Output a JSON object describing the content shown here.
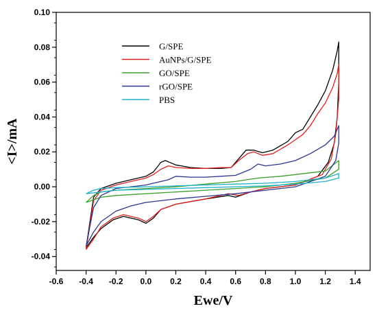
{
  "chart_data": {
    "type": "line",
    "title": "",
    "xlabel": "Ewe/V",
    "ylabel": "<I>/mA",
    "xlim": [
      -0.6,
      1.5
    ],
    "ylim": [
      -0.048,
      0.1
    ],
    "xticks": [
      -0.6,
      -0.4,
      -0.2,
      0.0,
      0.2,
      0.4,
      0.6,
      0.8,
      1.0,
      1.2,
      1.4
    ],
    "xtick_labels": [
      "-0.6",
      "-0.4",
      "-0.2",
      "0.0",
      "0.2",
      "0.4",
      "0.6",
      "0.8",
      "1.0",
      "1.2",
      "1.4"
    ],
    "yticks": [
      -0.04,
      -0.02,
      0.0,
      0.02,
      0.04,
      0.06,
      0.08,
      0.1
    ],
    "ytick_labels": [
      "-0.04",
      "-0.02",
      "0.00",
      "0.02",
      "0.04",
      "0.06",
      "0.08",
      "0.10"
    ],
    "grid": false,
    "legend_position": "upper-left",
    "series": [
      {
        "name": "G/SPE",
        "color": "#000000",
        "points": [
          [
            -0.4,
            -0.035
          ],
          [
            -0.35,
            -0.006
          ],
          [
            -0.3,
            -0.001
          ],
          [
            -0.2,
            0.002
          ],
          [
            -0.1,
            0.004
          ],
          [
            0.0,
            0.006
          ],
          [
            0.05,
            0.0085
          ],
          [
            0.1,
            0.014
          ],
          [
            0.13,
            0.015
          ],
          [
            0.2,
            0.0125
          ],
          [
            0.3,
            0.011
          ],
          [
            0.4,
            0.0105
          ],
          [
            0.5,
            0.0105
          ],
          [
            0.57,
            0.011
          ],
          [
            0.62,
            0.016
          ],
          [
            0.67,
            0.021
          ],
          [
            0.72,
            0.021
          ],
          [
            0.78,
            0.0195
          ],
          [
            0.85,
            0.021
          ],
          [
            0.95,
            0.026
          ],
          [
            1.0,
            0.031
          ],
          [
            1.05,
            0.033
          ],
          [
            1.1,
            0.04
          ],
          [
            1.15,
            0.047
          ],
          [
            1.2,
            0.055
          ],
          [
            1.25,
            0.067
          ],
          [
            1.28,
            0.078
          ],
          [
            1.29,
            0.083
          ],
          [
            1.29,
            0.06
          ],
          [
            1.28,
            0.04
          ],
          [
            1.26,
            0.025
          ],
          [
            1.22,
            0.014
          ],
          [
            1.15,
            0.006
          ],
          [
            1.0,
            0.001
          ],
          [
            0.8,
            -0.001
          ],
          [
            0.7,
            -0.003
          ],
          [
            0.6,
            -0.006
          ],
          [
            0.55,
            -0.005
          ],
          [
            0.4,
            -0.007
          ],
          [
            0.2,
            -0.01
          ],
          [
            0.1,
            -0.013
          ],
          [
            0.05,
            -0.018
          ],
          [
            0.0,
            -0.021
          ],
          [
            -0.05,
            -0.019
          ],
          [
            -0.15,
            -0.017
          ],
          [
            -0.22,
            -0.019
          ],
          [
            -0.3,
            -0.024
          ],
          [
            -0.35,
            -0.029
          ],
          [
            -0.4,
            -0.035
          ]
        ]
      },
      {
        "name": "AuNPs/G/SPE",
        "color": "#e0201c",
        "points": [
          [
            -0.4,
            -0.036
          ],
          [
            -0.35,
            -0.008
          ],
          [
            -0.3,
            -0.002
          ],
          [
            -0.2,
            0.001
          ],
          [
            -0.1,
            0.003
          ],
          [
            0.0,
            0.005
          ],
          [
            0.05,
            0.007
          ],
          [
            0.1,
            0.01
          ],
          [
            0.15,
            0.012
          ],
          [
            0.2,
            0.011
          ],
          [
            0.3,
            0.0105
          ],
          [
            0.4,
            0.0105
          ],
          [
            0.5,
            0.011
          ],
          [
            0.57,
            0.011
          ],
          [
            0.62,
            0.015
          ],
          [
            0.68,
            0.019
          ],
          [
            0.72,
            0.02
          ],
          [
            0.78,
            0.018
          ],
          [
            0.85,
            0.019
          ],
          [
            0.95,
            0.024
          ],
          [
            1.0,
            0.027
          ],
          [
            1.05,
            0.03
          ],
          [
            1.1,
            0.035
          ],
          [
            1.15,
            0.042
          ],
          [
            1.2,
            0.048
          ],
          [
            1.25,
            0.057
          ],
          [
            1.28,
            0.065
          ],
          [
            1.29,
            0.07
          ],
          [
            1.29,
            0.05
          ],
          [
            1.27,
            0.03
          ],
          [
            1.24,
            0.016
          ],
          [
            1.18,
            0.007
          ],
          [
            1.0,
            0.001
          ],
          [
            0.8,
            -0.001
          ],
          [
            0.7,
            -0.003
          ],
          [
            0.62,
            -0.005
          ],
          [
            0.55,
            -0.004
          ],
          [
            0.4,
            -0.007
          ],
          [
            0.2,
            -0.01
          ],
          [
            0.1,
            -0.013
          ],
          [
            0.05,
            -0.017
          ],
          [
            0.0,
            -0.02
          ],
          [
            -0.05,
            -0.018
          ],
          [
            -0.15,
            -0.016
          ],
          [
            -0.22,
            -0.018
          ],
          [
            -0.3,
            -0.023
          ],
          [
            -0.35,
            -0.03
          ],
          [
            -0.4,
            -0.036
          ]
        ]
      },
      {
        "name": "GO/SPE",
        "color": "#3aa02a",
        "points": [
          [
            -0.4,
            -0.009
          ],
          [
            -0.35,
            -0.005
          ],
          [
            -0.3,
            -0.003
          ],
          [
            -0.2,
            -0.002
          ],
          [
            0.0,
            -0.001
          ],
          [
            0.2,
            0.0
          ],
          [
            0.4,
            0.0015
          ],
          [
            0.6,
            0.003
          ],
          [
            0.75,
            0.005
          ],
          [
            0.9,
            0.006
          ],
          [
            1.0,
            0.007
          ],
          [
            1.1,
            0.008
          ],
          [
            1.2,
            0.009
          ],
          [
            1.29,
            0.015
          ],
          [
            1.29,
            0.01
          ],
          [
            1.2,
            0.005
          ],
          [
            1.0,
            0.002
          ],
          [
            0.8,
            0.0
          ],
          [
            0.6,
            -0.001
          ],
          [
            0.4,
            -0.002
          ],
          [
            0.2,
            -0.003
          ],
          [
            0.0,
            -0.004
          ],
          [
            -0.2,
            -0.005
          ],
          [
            -0.3,
            -0.006
          ],
          [
            -0.4,
            -0.009
          ]
        ]
      },
      {
        "name": "rGO/SPE",
        "color": "#2c3591",
        "points": [
          [
            -0.4,
            -0.034
          ],
          [
            -0.35,
            -0.012
          ],
          [
            -0.3,
            -0.005
          ],
          [
            -0.2,
            -0.001
          ],
          [
            -0.1,
            0.0
          ],
          [
            0.0,
            0.001
          ],
          [
            0.1,
            0.003
          ],
          [
            0.15,
            0.004
          ],
          [
            0.2,
            0.006
          ],
          [
            0.3,
            0.0055
          ],
          [
            0.4,
            0.0055
          ],
          [
            0.5,
            0.006
          ],
          [
            0.6,
            0.0065
          ],
          [
            0.7,
            0.01
          ],
          [
            0.75,
            0.013
          ],
          [
            0.8,
            0.012
          ],
          [
            0.9,
            0.013
          ],
          [
            1.0,
            0.015
          ],
          [
            1.1,
            0.019
          ],
          [
            1.2,
            0.024
          ],
          [
            1.26,
            0.029
          ],
          [
            1.29,
            0.035
          ],
          [
            1.29,
            0.025
          ],
          [
            1.27,
            0.015
          ],
          [
            1.2,
            0.006
          ],
          [
            1.0,
            0.0
          ],
          [
            0.8,
            -0.002
          ],
          [
            0.6,
            -0.004
          ],
          [
            0.4,
            -0.0055
          ],
          [
            0.2,
            -0.007
          ],
          [
            0.1,
            -0.008
          ],
          [
            0.0,
            -0.009
          ],
          [
            -0.1,
            -0.011
          ],
          [
            -0.2,
            -0.014
          ],
          [
            -0.3,
            -0.02
          ],
          [
            -0.35,
            -0.026
          ],
          [
            -0.4,
            -0.034
          ]
        ]
      },
      {
        "name": "PBS",
        "color": "#1fb1c9",
        "points": [
          [
            -0.4,
            -0.004
          ],
          [
            -0.35,
            -0.002
          ],
          [
            -0.3,
            -0.001
          ],
          [
            -0.2,
            -0.0005
          ],
          [
            0.0,
            0.0
          ],
          [
            0.2,
            0.0005
          ],
          [
            0.4,
            0.001
          ],
          [
            0.6,
            0.0015
          ],
          [
            0.8,
            0.002
          ],
          [
            1.0,
            0.003
          ],
          [
            1.2,
            0.005
          ],
          [
            1.29,
            0.0075
          ],
          [
            1.29,
            0.005
          ],
          [
            1.2,
            0.003
          ],
          [
            1.0,
            0.0015
          ],
          [
            0.8,
            0.0005
          ],
          [
            0.6,
            0.0
          ],
          [
            0.4,
            -0.0005
          ],
          [
            0.2,
            -0.001
          ],
          [
            0.0,
            -0.0015
          ],
          [
            -0.2,
            -0.002
          ],
          [
            -0.3,
            -0.003
          ],
          [
            -0.4,
            -0.004
          ]
        ]
      }
    ]
  }
}
